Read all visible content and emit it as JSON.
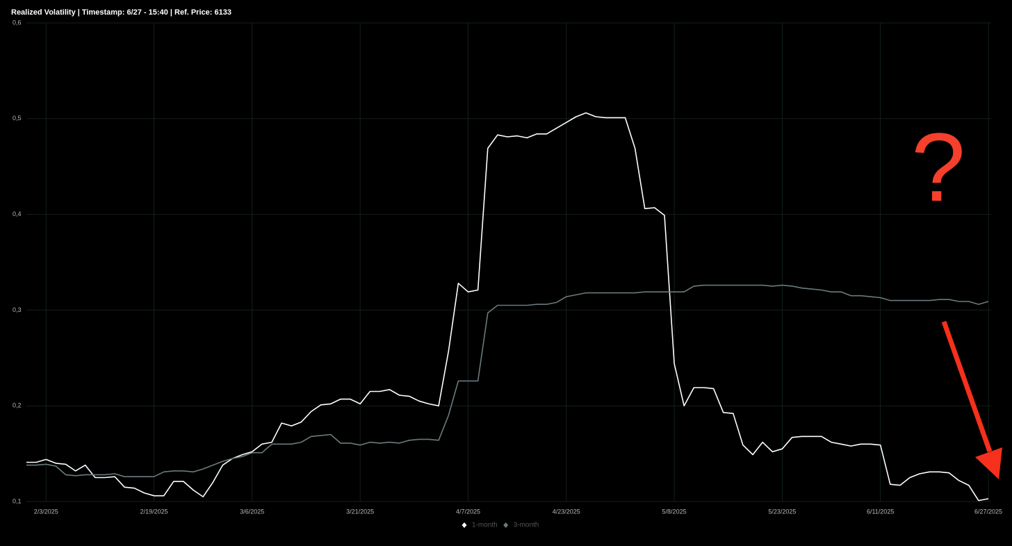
{
  "chart_data": {
    "type": "line",
    "title": "Realized Volatility | Timestamp: 6/27 - 15:40  | Ref. Price: 6133",
    "annotation": "?",
    "categories": [
      null,
      null,
      "2/3/2025",
      null,
      null,
      null,
      null,
      null,
      null,
      null,
      null,
      null,
      null,
      "2/19/2025",
      null,
      null,
      null,
      null,
      null,
      null,
      null,
      null,
      null,
      "3/6/2025",
      null,
      null,
      null,
      null,
      null,
      null,
      null,
      null,
      null,
      null,
      "3/21/2025",
      null,
      null,
      null,
      null,
      null,
      null,
      null,
      null,
      null,
      null,
      "4/7/2025",
      null,
      null,
      null,
      null,
      null,
      null,
      null,
      null,
      null,
      "4/23/2025",
      null,
      null,
      null,
      null,
      null,
      null,
      null,
      null,
      null,
      null,
      "5/8/2025",
      null,
      null,
      null,
      null,
      null,
      null,
      null,
      null,
      null,
      null,
      "5/23/2025",
      null,
      null,
      null,
      null,
      null,
      null,
      null,
      null,
      null,
      "6/11/2025",
      null,
      null,
      null,
      null,
      null,
      null,
      null,
      null,
      null,
      null,
      "6/27/2025"
    ],
    "series": [
      {
        "name": "1-month",
        "color": "#ffffff",
        "values": [
          0.141,
          0.141,
          0.144,
          0.14,
          0.139,
          0.132,
          0.138,
          0.125,
          0.125,
          0.126,
          0.115,
          0.114,
          0.109,
          0.106,
          0.106,
          0.121,
          0.121,
          0.112,
          0.105,
          0.12,
          0.138,
          0.145,
          0.149,
          0.152,
          0.16,
          0.162,
          0.182,
          0.179,
          0.183,
          0.194,
          0.201,
          0.202,
          0.207,
          0.207,
          0.202,
          0.215,
          0.215,
          0.217,
          0.211,
          0.21,
          0.205,
          0.202,
          0.2,
          0.257,
          0.328,
          0.319,
          0.321,
          0.469,
          0.483,
          0.481,
          0.482,
          0.48,
          0.484,
          0.484,
          0.49,
          0.496,
          0.502,
          0.506,
          0.502,
          0.501,
          0.501,
          0.501,
          0.469,
          0.406,
          0.407,
          0.399,
          0.244,
          0.2,
          0.219,
          0.219,
          0.218,
          0.193,
          0.192,
          0.159,
          0.149,
          0.162,
          0.152,
          0.155,
          0.167,
          0.168,
          0.168,
          0.168,
          0.162,
          0.16,
          0.158,
          0.16,
          0.16,
          0.159,
          0.118,
          0.117,
          0.125,
          0.129,
          0.131,
          0.131,
          0.13,
          0.122,
          0.117,
          0.101,
          0.103
        ]
      },
      {
        "name": "3-month",
        "color": "#6b7b7f",
        "values": [
          0.138,
          0.138,
          0.139,
          0.137,
          0.128,
          0.127,
          0.128,
          0.128,
          0.128,
          0.129,
          0.126,
          0.126,
          0.126,
          0.126,
          0.131,
          0.132,
          0.132,
          0.131,
          0.134,
          0.138,
          0.142,
          0.145,
          0.147,
          0.151,
          0.151,
          0.16,
          0.16,
          0.16,
          0.162,
          0.168,
          0.169,
          0.17,
          0.161,
          0.161,
          0.159,
          0.162,
          0.161,
          0.162,
          0.161,
          0.164,
          0.165,
          0.165,
          0.164,
          0.19,
          0.226,
          0.226,
          0.226,
          0.297,
          0.305,
          0.305,
          0.305,
          0.305,
          0.306,
          0.306,
          0.308,
          0.314,
          0.316,
          0.318,
          0.318,
          0.318,
          0.318,
          0.318,
          0.318,
          0.319,
          0.319,
          0.319,
          0.319,
          0.319,
          0.325,
          0.326,
          0.326,
          0.326,
          0.326,
          0.326,
          0.326,
          0.326,
          0.325,
          0.326,
          0.325,
          0.323,
          0.322,
          0.321,
          0.319,
          0.319,
          0.315,
          0.315,
          0.314,
          0.313,
          0.31,
          0.31,
          0.31,
          0.31,
          0.31,
          0.311,
          0.311,
          0.309,
          0.309,
          0.306,
          0.309
        ]
      }
    ],
    "ylim": [
      0.1,
      0.6
    ],
    "yticks": [
      {
        "value": 0.1,
        "label": "0,1"
      },
      {
        "value": 0.2,
        "label": "0,2"
      },
      {
        "value": 0.3,
        "label": "0,3"
      },
      {
        "value": 0.4,
        "label": "0,4"
      },
      {
        "value": 0.5,
        "label": "0,5"
      },
      {
        "value": 0.6,
        "label": "0,6"
      }
    ],
    "grid": true
  }
}
